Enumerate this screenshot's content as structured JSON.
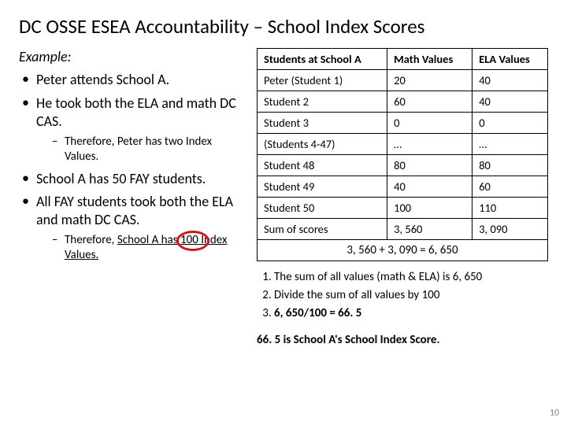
{
  "title": "DC OSSE ESEA Accountability – School Index Scores",
  "example_label": "Example:",
  "bullets": {
    "b1": "Peter attends School A.",
    "b2": "He took both the ELA and math DC CAS.",
    "b2_sub": "Therefore, Peter has two Index Values.",
    "b3": "School A has 50 FAY students.",
    "b4": "All FAY students took both the ELA and math DC CAS.",
    "b4_sub_a": "Therefore, ",
    "b4_sub_b": "School A has ",
    "b4_sub_c": "100",
    "b4_sub_d": " Index Values."
  },
  "table": {
    "headers": {
      "c1": "Students at School A",
      "c2": "Math Values",
      "c3": "ELA Values"
    },
    "rows": [
      {
        "c1": "Peter (Student 1)",
        "c2": "20",
        "c3": "40"
      },
      {
        "c1": "Student 2",
        "c2": "60",
        "c3": "40"
      },
      {
        "c1": "Student 3",
        "c2": "0",
        "c3": "0"
      },
      {
        "c1": "(Students 4-47)",
        "c2": "…",
        "c3": "…"
      },
      {
        "c1": "Student 48",
        "c2": "80",
        "c3": "80"
      },
      {
        "c1": "Student 49",
        "c2": "40",
        "c3": "60"
      },
      {
        "c1": "Student 50",
        "c2": "100",
        "c3": "110"
      }
    ],
    "sum": {
      "c1": "Sum of scores",
      "c2": "3, 560",
      "c3": "3, 090"
    },
    "equation": "3, 560 + 3, 090 = 6, 650"
  },
  "steps": {
    "s1": "The sum of all values (math & ELA) is 6, 650",
    "s2": "Divide the sum of all values by 100",
    "s3": "6, 650/100 = 66. 5"
  },
  "final": "66. 5 is School A's School Index Score.",
  "pagenum": "10"
}
